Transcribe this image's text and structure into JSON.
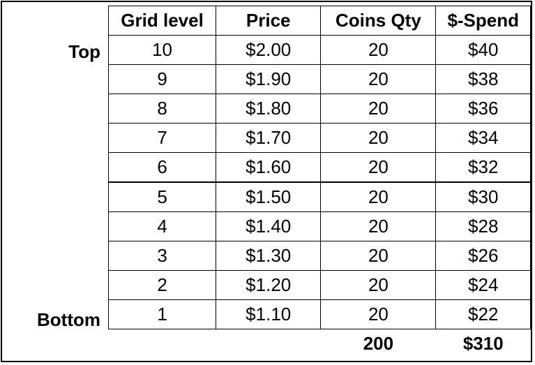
{
  "row_labels": {
    "top": "Top",
    "bottom": "Bottom"
  },
  "headers": [
    "Grid level",
    "Price",
    "Coins Qty",
    "$-Spend"
  ],
  "rows": [
    {
      "level": "10",
      "price": "$2.00",
      "qty": "20",
      "spend": "$40"
    },
    {
      "level": "9",
      "price": "$1.90",
      "qty": "20",
      "spend": "$38"
    },
    {
      "level": "8",
      "price": "$1.80",
      "qty": "20",
      "spend": "$36"
    },
    {
      "level": "7",
      "price": "$1.70",
      "qty": "20",
      "spend": "$34"
    },
    {
      "level": "6",
      "price": "$1.60",
      "qty": "20",
      "spend": "$32"
    },
    {
      "level": "5",
      "price": "$1.50",
      "qty": "20",
      "spend": "$30"
    },
    {
      "level": "4",
      "price": "$1.40",
      "qty": "20",
      "spend": "$28"
    },
    {
      "level": "3",
      "price": "$1.30",
      "qty": "20",
      "spend": "$26"
    },
    {
      "level": "2",
      "price": "$1.20",
      "qty": "20",
      "spend": "$24"
    },
    {
      "level": "1",
      "price": "$1.10",
      "qty": "20",
      "spend": "$22"
    }
  ],
  "totals": {
    "qty": "200",
    "spend": "$310"
  }
}
